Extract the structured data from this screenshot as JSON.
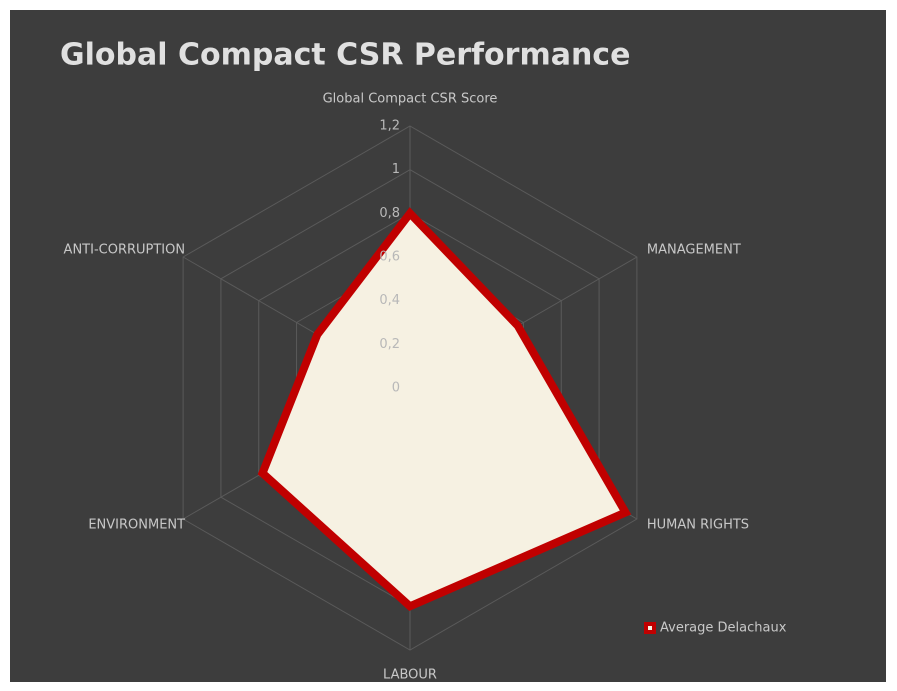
{
  "chart_data": {
    "type": "radar",
    "title": "Global Compact CSR Performance",
    "categories": [
      "Global Compact CSR Score",
      "MANAGEMENT",
      "HUMAN RIGHTS",
      "LABOUR",
      "ENVIRONMENT",
      "ANTI-CORRUPTION"
    ],
    "series": [
      {
        "name": "Average Delachaux",
        "color": "#c00000",
        "fill": "#f6f1e2",
        "values": [
          0.8,
          0.57,
          1.14,
          1.0,
          0.78,
          0.49
        ]
      }
    ],
    "ylim": [
      0,
      1.2
    ],
    "yticks": [
      0,
      {
        "value": 0.2,
        "label": "0,2"
      },
      {
        "value": 0.4,
        "label": "0,4"
      },
      {
        "value": 0.6,
        "label": "0,6"
      },
      {
        "value": 0.8,
        "label": "0,8"
      },
      1,
      {
        "value": 1.2,
        "label": "1,2"
      }
    ],
    "grid": true,
    "legend": "bottom-right"
  }
}
